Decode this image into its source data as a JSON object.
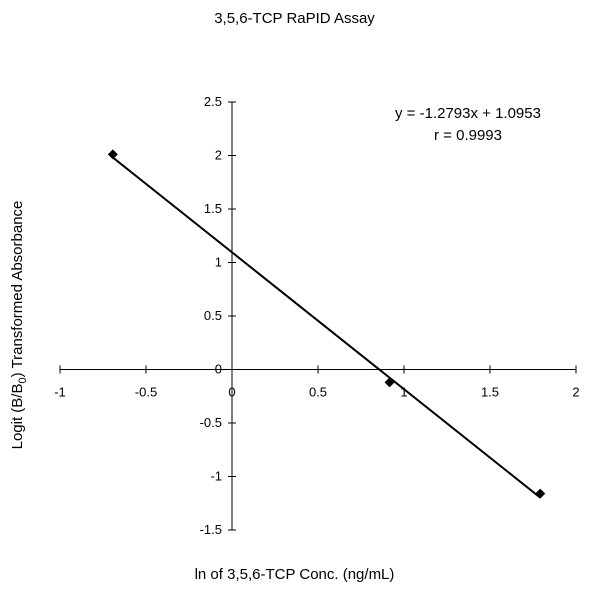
{
  "chart_data": {
    "type": "scatter",
    "title": "3,5,6-TCP RaPID Assay",
    "xlabel": "ln of 3,5,6-TCP Conc. (ng/mL)",
    "ylabel_prefix": "Logit (B/B",
    "ylabel_subscript": "0",
    "ylabel_suffix": ") Transformed Absorbance",
    "xlim": [
      -1,
      2
    ],
    "ylim": [
      -1.5,
      2.5
    ],
    "x_ticks": [
      -1,
      -0.5,
      0,
      0.5,
      1,
      1.5,
      2
    ],
    "y_ticks": [
      -1.5,
      -1,
      -0.5,
      0,
      0.5,
      1,
      1.5,
      2,
      2.5
    ],
    "series": [
      {
        "marker": "diamond",
        "points": [
          {
            "x": -0.693,
            "y": 2.01
          },
          {
            "x": 0.916,
            "y": -0.12
          },
          {
            "x": 1.792,
            "y": -1.16
          }
        ]
      }
    ],
    "trendline": {
      "slope": -1.2793,
      "intercept": 1.0953,
      "x_range": [
        -0.693,
        1.792
      ]
    },
    "annotations": [
      "y = -1.2793x + 1.0953",
      "r = 0.9993"
    ]
  }
}
